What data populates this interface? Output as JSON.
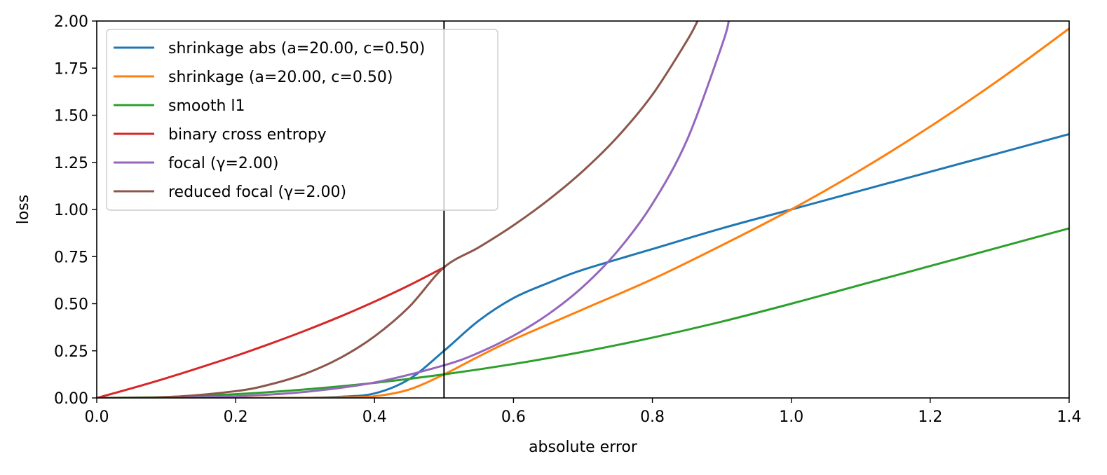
{
  "chart_data": {
    "type": "line",
    "xlabel": "absolute error",
    "ylabel": "loss",
    "xlim": [
      0.0,
      1.4
    ],
    "ylim": [
      0.0,
      2.0
    ],
    "xticks": [
      "0.0",
      "0.2",
      "0.4",
      "0.6",
      "0.8",
      "1.0",
      "1.2",
      "1.4"
    ],
    "yticks": [
      "0.00",
      "0.25",
      "0.50",
      "0.75",
      "1.00",
      "1.25",
      "1.50",
      "1.75",
      "2.00"
    ],
    "grid": false,
    "legend_position": "top-left",
    "vertical_line": {
      "x": 0.5,
      "color": "#000000"
    },
    "series": [
      {
        "name": "shrinkage abs (a=20.00, c=0.50)",
        "color": "#1f77b4",
        "points": [
          [
            0.0,
            0.0
          ],
          [
            0.1,
            0.0
          ],
          [
            0.2,
            0.0
          ],
          [
            0.3,
            0.001
          ],
          [
            0.35,
            0.006
          ],
          [
            0.4,
            0.024
          ],
          [
            0.45,
            0.1
          ],
          [
            0.5,
            0.25
          ],
          [
            0.55,
            0.41
          ],
          [
            0.6,
            0.53
          ],
          [
            0.65,
            0.61
          ],
          [
            0.7,
            0.68
          ],
          [
            0.8,
            0.79
          ],
          [
            0.9,
            0.9
          ],
          [
            1.0,
            1.0
          ],
          [
            1.1,
            1.1
          ],
          [
            1.2,
            1.2
          ],
          [
            1.3,
            1.3
          ],
          [
            1.4,
            1.4
          ]
        ]
      },
      {
        "name": "shrinkage (a=20.00, c=0.50)",
        "color": "#ff7f0e",
        "points": [
          [
            0.0,
            0.0
          ],
          [
            0.2,
            0.0
          ],
          [
            0.3,
            0.0
          ],
          [
            0.35,
            0.002
          ],
          [
            0.4,
            0.009
          ],
          [
            0.45,
            0.045
          ],
          [
            0.5,
            0.125
          ],
          [
            0.55,
            0.22
          ],
          [
            0.6,
            0.31
          ],
          [
            0.7,
            0.47
          ],
          [
            0.8,
            0.63
          ],
          [
            0.9,
            0.81
          ],
          [
            1.0,
            1.0
          ],
          [
            1.1,
            1.21
          ],
          [
            1.2,
            1.44
          ],
          [
            1.3,
            1.69
          ],
          [
            1.4,
            1.96
          ]
        ]
      },
      {
        "name": "smooth l1",
        "color": "#2ca02c",
        "points": [
          [
            0.0,
            0.0
          ],
          [
            0.1,
            0.005
          ],
          [
            0.2,
            0.02
          ],
          [
            0.3,
            0.045
          ],
          [
            0.4,
            0.08
          ],
          [
            0.5,
            0.125
          ],
          [
            0.6,
            0.18
          ],
          [
            0.7,
            0.245
          ],
          [
            0.8,
            0.32
          ],
          [
            0.9,
            0.405
          ],
          [
            1.0,
            0.5
          ],
          [
            1.1,
            0.6
          ],
          [
            1.2,
            0.7
          ],
          [
            1.3,
            0.8
          ],
          [
            1.4,
            0.9
          ]
        ]
      },
      {
        "name": "binary cross entropy",
        "color": "#d62728",
        "points": [
          [
            0.0,
            0.0
          ],
          [
            0.05,
            0.051
          ],
          [
            0.1,
            0.105
          ],
          [
            0.15,
            0.163
          ],
          [
            0.2,
            0.223
          ],
          [
            0.25,
            0.288
          ],
          [
            0.3,
            0.357
          ],
          [
            0.35,
            0.431
          ],
          [
            0.4,
            0.511
          ],
          [
            0.45,
            0.598
          ],
          [
            0.5,
            0.693
          ]
        ]
      },
      {
        "name": "focal (γ=2.00)",
        "color": "#9467bd",
        "points": [
          [
            0.0,
            0.0
          ],
          [
            0.1,
            0.001
          ],
          [
            0.2,
            0.009
          ],
          [
            0.3,
            0.032
          ],
          [
            0.4,
            0.082
          ],
          [
            0.5,
            0.173
          ],
          [
            0.55,
            0.24
          ],
          [
            0.6,
            0.33
          ],
          [
            0.65,
            0.444
          ],
          [
            0.7,
            0.59
          ],
          [
            0.75,
            0.78
          ],
          [
            0.8,
            1.03
          ],
          [
            0.85,
            1.37
          ],
          [
            0.9,
            1.87
          ],
          [
            0.91,
            2.0
          ]
        ]
      },
      {
        "name": "reduced focal (γ=2.00)",
        "color": "#8c564b",
        "points": [
          [
            0.0,
            0.0
          ],
          [
            0.1,
            0.004
          ],
          [
            0.2,
            0.036
          ],
          [
            0.25,
            0.072
          ],
          [
            0.3,
            0.128
          ],
          [
            0.35,
            0.211
          ],
          [
            0.4,
            0.327
          ],
          [
            0.45,
            0.484
          ],
          [
            0.5,
            0.693
          ],
          [
            0.55,
            0.799
          ],
          [
            0.6,
            0.916
          ],
          [
            0.65,
            1.05
          ],
          [
            0.7,
            1.204
          ],
          [
            0.75,
            1.386
          ],
          [
            0.8,
            1.609
          ],
          [
            0.85,
            1.897
          ],
          [
            0.865,
            2.0
          ]
        ]
      }
    ]
  }
}
